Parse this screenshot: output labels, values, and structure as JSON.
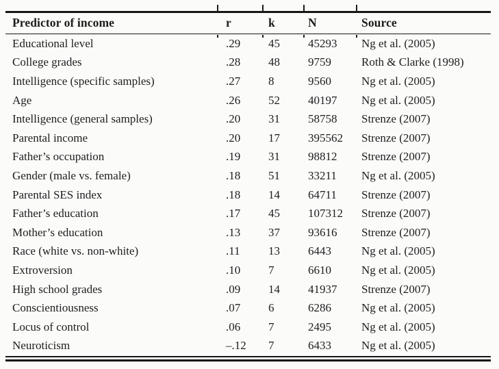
{
  "page": {
    "background": "#fbfbfa"
  },
  "style": {
    "text_color": "#1d1d1d",
    "rule_color": "#161616"
  },
  "table": {
    "columns": [
      "Predictor of income",
      "r",
      "k",
      "N",
      "Source"
    ],
    "rows": [
      [
        "Educational level",
        ".29",
        "45",
        "45293",
        "Ng et al. (2005)"
      ],
      [
        "College grades",
        ".28",
        "48",
        "9759",
        "Roth & Clarke (1998)"
      ],
      [
        "Intelligence (specific samples)",
        ".27",
        "8",
        "9560",
        "Ng et al. (2005)"
      ],
      [
        "Age",
        ".26",
        "52",
        "40197",
        "Ng et al. (2005)"
      ],
      [
        "Intelligence (general samples)",
        ".20",
        "31",
        "58758",
        "Strenze (2007)"
      ],
      [
        "Parental income",
        ".20",
        "17",
        "395562",
        "Strenze (2007)"
      ],
      [
        "Father’s occupation",
        ".19",
        "31",
        "98812",
        "Strenze (2007)"
      ],
      [
        "Gender (male vs. female)",
        ".18",
        "51",
        "33211",
        "Ng et al. (2005)"
      ],
      [
        "Parental SES index",
        ".18",
        "14",
        "64711",
        "Strenze (2007)"
      ],
      [
        "Father’s education",
        ".17",
        "45",
        "107312",
        "Strenze (2007)"
      ],
      [
        "Mother’s education",
        ".13",
        "37",
        "93616",
        "Strenze (2007)"
      ],
      [
        "Race (white vs. non-white)",
        ".11",
        "13",
        "6443",
        "Ng et al. (2005)"
      ],
      [
        "Extroversion",
        ".10",
        "7",
        "6610",
        "Ng et al. (2005)"
      ],
      [
        "High school grades",
        ".09",
        "14",
        "41937",
        "Strenze (2007)"
      ],
      [
        "Conscientiousness",
        ".07",
        "6",
        "6286",
        "Ng et al. (2005)"
      ],
      [
        "Locus of control",
        ".06",
        "7",
        "2495",
        "Ng et al. (2005)"
      ],
      [
        "Neuroticism",
        "–.12",
        "7",
        "6433",
        "Ng et al. (2005)"
      ]
    ]
  }
}
